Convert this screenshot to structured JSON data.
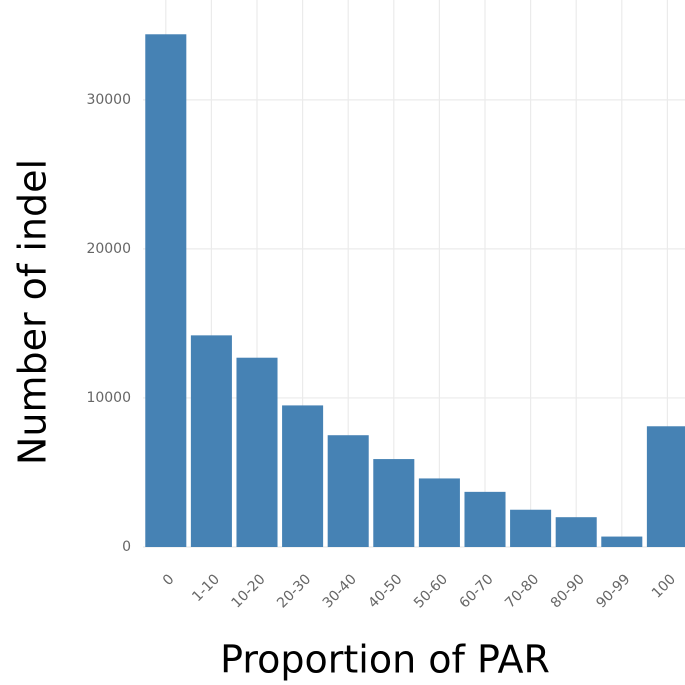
{
  "chart_data": {
    "type": "bar",
    "x_label": "Proportion of PAR",
    "y_label": "Number of indel",
    "categories": [
      "0",
      "1-10",
      "10-20",
      "20-30",
      "30-40",
      "40-50",
      "50-60",
      "60-70",
      "70-80",
      "80-90",
      "90-99",
      "100"
    ],
    "values": [
      34400,
      14200,
      12700,
      9500,
      7500,
      5900,
      4600,
      3700,
      2500,
      2000,
      700,
      8100
    ],
    "color": "#4682b4",
    "ylim": [
      0,
      36700
    ],
    "yticks": [
      0,
      10000,
      20000,
      30000
    ],
    "grid": true
  }
}
